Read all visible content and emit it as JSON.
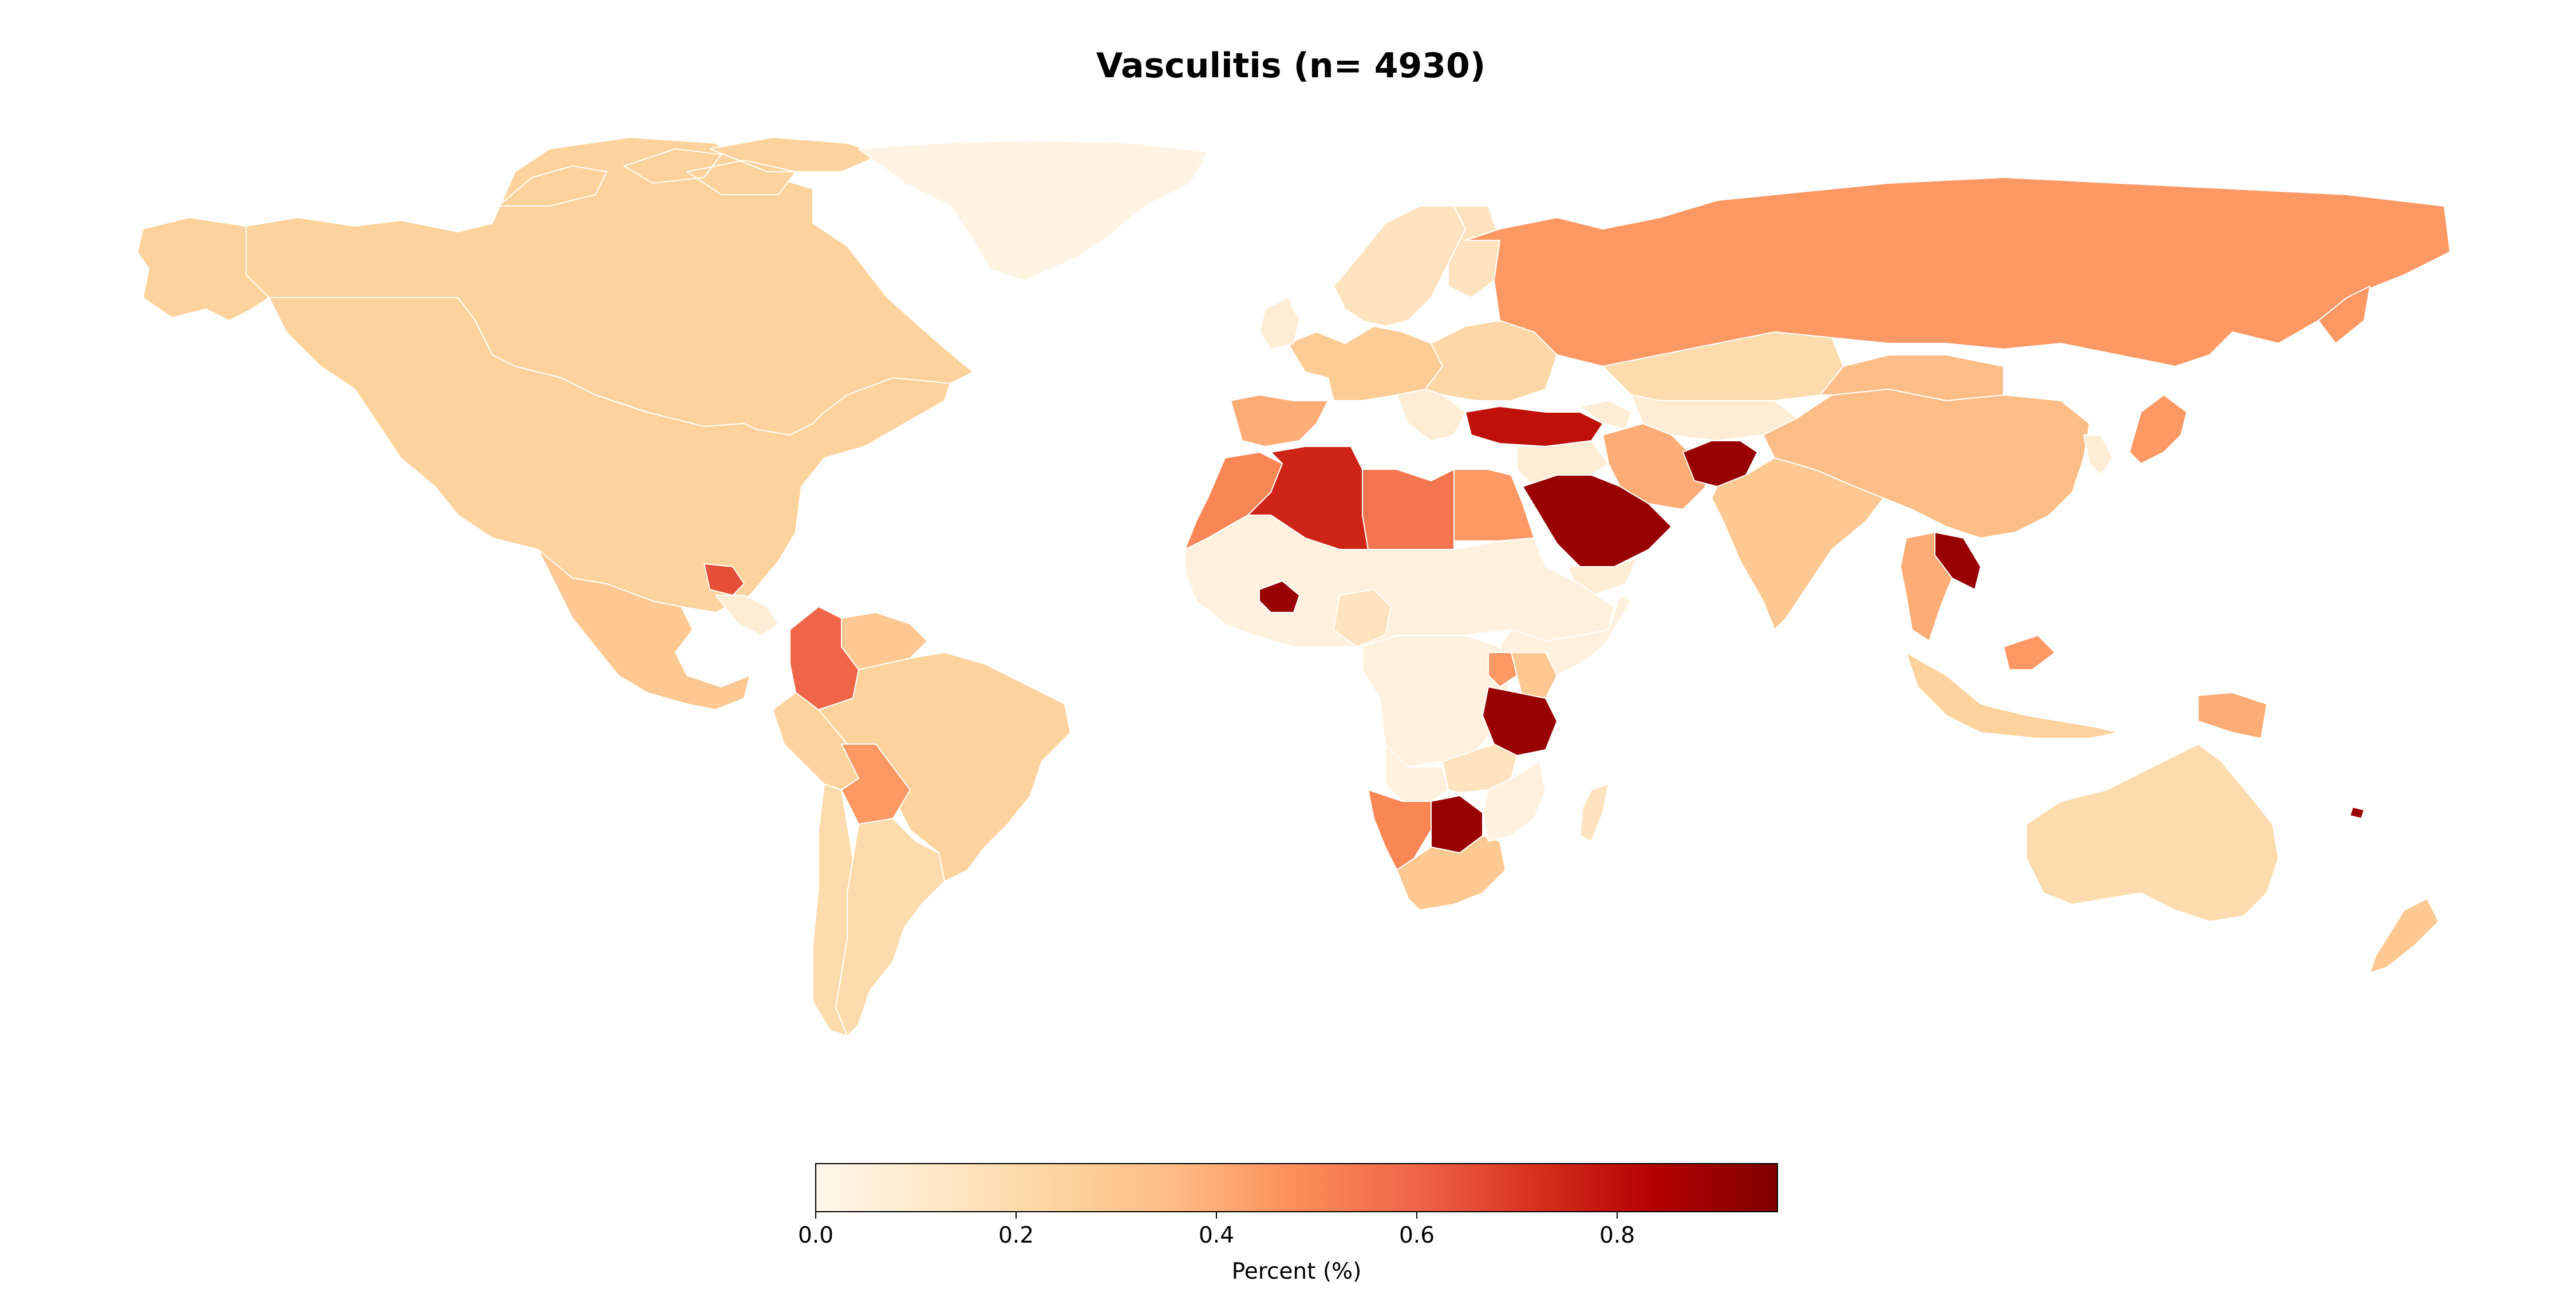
{
  "chart_data": {
    "type": "choropleth",
    "title": "Vasculitis (n= 4930)",
    "value_unit": "Percent (%)",
    "colormap": "OrRd",
    "color_stops": [
      "#fff7ec",
      "#fee8c8",
      "#fdd49e",
      "#fdbb84",
      "#fc8d59",
      "#ef6548",
      "#d7301f",
      "#b30000",
      "#7f0000"
    ],
    "colorbar": {
      "label": "Percent (%)",
      "range": [
        0.0,
        0.96
      ],
      "ticks": [
        0.0,
        0.2,
        0.4,
        0.6,
        0.8
      ],
      "tick_labels": [
        "0.0",
        "0.2",
        "0.4",
        "0.6",
        "0.8"
      ],
      "orientation": "horizontal",
      "placement": "bottom-center"
    },
    "regions": [
      {
        "name": "Canada",
        "value": 0.25
      },
      {
        "name": "United States",
        "value": 0.25
      },
      {
        "name": "Greenland",
        "value": 0.03
      },
      {
        "name": "Alaska",
        "value": 0.25
      },
      {
        "name": "Mexico",
        "value": 0.3
      },
      {
        "name": "Guatemala",
        "value": 0.65
      },
      {
        "name": "Colombia",
        "value": 0.6
      },
      {
        "name": "Venezuela",
        "value": 0.3
      },
      {
        "name": "Brazil",
        "value": 0.25
      },
      {
        "name": "Peru",
        "value": 0.25
      },
      {
        "name": "Bolivia",
        "value": 0.45
      },
      {
        "name": "Argentina",
        "value": 0.2
      },
      {
        "name": "Chile",
        "value": 0.2
      },
      {
        "name": "Russia",
        "value": 0.45
      },
      {
        "name": "Finland",
        "value": 0.15
      },
      {
        "name": "Scandinavia",
        "value": 0.15
      },
      {
        "name": "Western Europe",
        "value": 0.28
      },
      {
        "name": "Eastern Europe",
        "value": 0.22
      },
      {
        "name": "Spain",
        "value": 0.4
      },
      {
        "name": "Turkey",
        "value": 0.8
      },
      {
        "name": "Kazakhstan",
        "value": 0.2
      },
      {
        "name": "Iran",
        "value": 0.4
      },
      {
        "name": "Saudi Arabia",
        "value": 0.9
      },
      {
        "name": "Afghanistan",
        "value": 0.9
      },
      {
        "name": "China",
        "value": 0.35
      },
      {
        "name": "Mongolia",
        "value": 0.35
      },
      {
        "name": "Japan",
        "value": 0.45
      },
      {
        "name": "India",
        "value": 0.3
      },
      {
        "name": "Laos",
        "value": 0.9
      },
      {
        "name": "Thailand",
        "value": 0.4
      },
      {
        "name": "Malaysia",
        "value": 0.45
      },
      {
        "name": "Indonesia",
        "value": 0.25
      },
      {
        "name": "Papua New Guinea",
        "value": 0.4
      },
      {
        "name": "Australia",
        "value": 0.2
      },
      {
        "name": "New Zealand",
        "value": 0.3
      },
      {
        "name": "Morocco",
        "value": 0.5
      },
      {
        "name": "Algeria",
        "value": 0.75
      },
      {
        "name": "Libya",
        "value": 0.55
      },
      {
        "name": "Egypt",
        "value": 0.45
      },
      {
        "name": "Sahel and West Africa",
        "value": 0.05
      },
      {
        "name": "Burkina Faso",
        "value": 0.9
      },
      {
        "name": "Nigeria",
        "value": 0.15
      },
      {
        "name": "Central Africa",
        "value": 0.05
      },
      {
        "name": "East Africa",
        "value": 0.05
      },
      {
        "name": "Kenya",
        "value": 0.3
      },
      {
        "name": "Uganda",
        "value": 0.45
      },
      {
        "name": "Tanzania",
        "value": 0.9
      },
      {
        "name": "Angola",
        "value": 0.05
      },
      {
        "name": "Zambia",
        "value": 0.15
      },
      {
        "name": "Namibia",
        "value": 0.5
      },
      {
        "name": "Botswana",
        "value": 0.9
      },
      {
        "name": "South Africa",
        "value": 0.3
      },
      {
        "name": "Madagascar",
        "value": 0.15
      },
      {
        "name": "Fiji",
        "value": 0.9
      }
    ]
  }
}
